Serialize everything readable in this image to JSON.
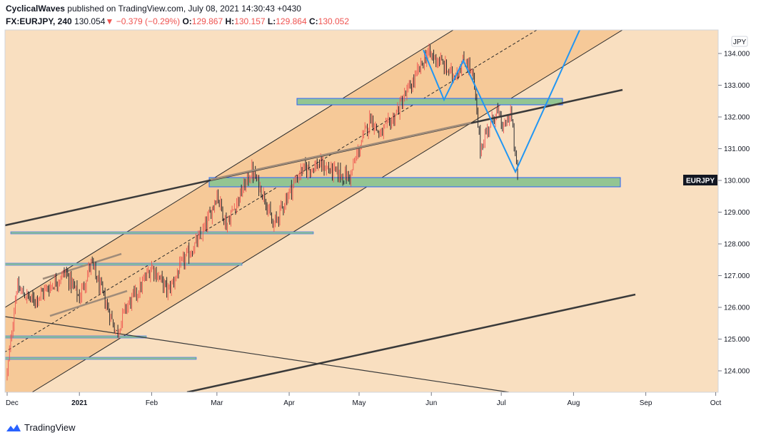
{
  "header": {
    "author": "CyclicalWaves",
    "published_text": "published on TradingView.com, July 08, 2021 14:30:43 +0430",
    "symbol": "FX:EURJPY, 240",
    "last": "130.054",
    "down_arrow": "▼",
    "change": "−0.379 (−0.29%)",
    "o_label": "O:",
    "o": "129.867",
    "h_label": "H:",
    "h": "130.157",
    "l_label": "L:",
    "l": "129.864",
    "c_label": "C:",
    "c": "130.052"
  },
  "footer": {
    "brand": "TradingView",
    "icon": "tradingview-logo-icon"
  },
  "colors": {
    "background": "#f9dfc0",
    "channel_fill": "#f6c998",
    "up_candle": "#ef5350",
    "down_candle": "#131722",
    "zone_fill": "#93c592",
    "zone_border": "#2962ff",
    "projection": "#2196f3",
    "trendline": "#3a3a3a",
    "price_tag": "#131722"
  },
  "chart_data": {
    "type": "candlestick",
    "currency_badge": "JPY",
    "price_tag": {
      "label": "EURJPY",
      "value": 130.0
    },
    "y_ticks": [
      "134.000",
      "133.000",
      "132.000",
      "131.000",
      "130.000",
      "129.000",
      "128.000",
      "127.000",
      "126.000",
      "125.000",
      "124.000"
    ],
    "x_ticks": [
      "Dec",
      "2021",
      "Feb",
      "Mar",
      "Apr",
      "May",
      "Jun",
      "Jul",
      "Aug",
      "Sep",
      "Oct"
    ],
    "ylim": [
      123.35,
      134.55
    ],
    "price_path": [
      [
        "2020-12-01",
        123.9
      ],
      [
        "2020-12-05",
        126.6
      ],
      [
        "2020-12-12",
        126.2
      ],
      [
        "2020-12-20",
        126.7
      ],
      [
        "2020-12-26",
        127.1
      ],
      [
        "2021-01-01",
        126.3
      ],
      [
        "2021-01-06",
        127.4
      ],
      [
        "2021-01-12",
        126.2
      ],
      [
        "2021-01-17",
        125.2
      ],
      [
        "2021-01-21",
        126.0
      ],
      [
        "2021-01-27",
        126.6
      ],
      [
        "2021-02-01",
        127.3
      ],
      [
        "2021-02-08",
        126.5
      ],
      [
        "2021-02-15",
        127.5
      ],
      [
        "2021-02-22",
        128.2
      ],
      [
        "2021-02-26",
        128.9
      ],
      [
        "2021-03-01",
        129.6
      ],
      [
        "2021-03-05",
        128.6
      ],
      [
        "2021-03-10",
        129.4
      ],
      [
        "2021-03-16",
        130.3
      ],
      [
        "2021-03-22",
        129.4
      ],
      [
        "2021-03-25",
        128.5
      ],
      [
        "2021-03-31",
        129.5
      ],
      [
        "2021-04-06",
        130.3
      ],
      [
        "2021-04-14",
        130.5
      ],
      [
        "2021-04-22",
        130.2
      ],
      [
        "2021-04-27",
        130.1
      ],
      [
        "2021-05-01",
        131.0
      ],
      [
        "2021-05-06",
        132.0
      ],
      [
        "2021-05-10",
        131.4
      ],
      [
        "2021-05-16",
        132.0
      ],
      [
        "2021-05-21",
        132.7
      ],
      [
        "2021-05-25",
        133.2
      ],
      [
        "2021-05-30",
        134.0
      ],
      [
        "2021-06-04",
        133.8
      ],
      [
        "2021-06-10",
        133.3
      ],
      [
        "2021-06-16",
        133.8
      ],
      [
        "2021-06-19",
        133.2
      ],
      [
        "2021-06-22",
        131.0
      ],
      [
        "2021-06-25",
        131.6
      ],
      [
        "2021-06-29",
        132.2
      ],
      [
        "2021-07-02",
        131.6
      ],
      [
        "2021-07-05",
        132.2
      ],
      [
        "2021-07-08",
        130.05
      ]
    ]
  }
}
